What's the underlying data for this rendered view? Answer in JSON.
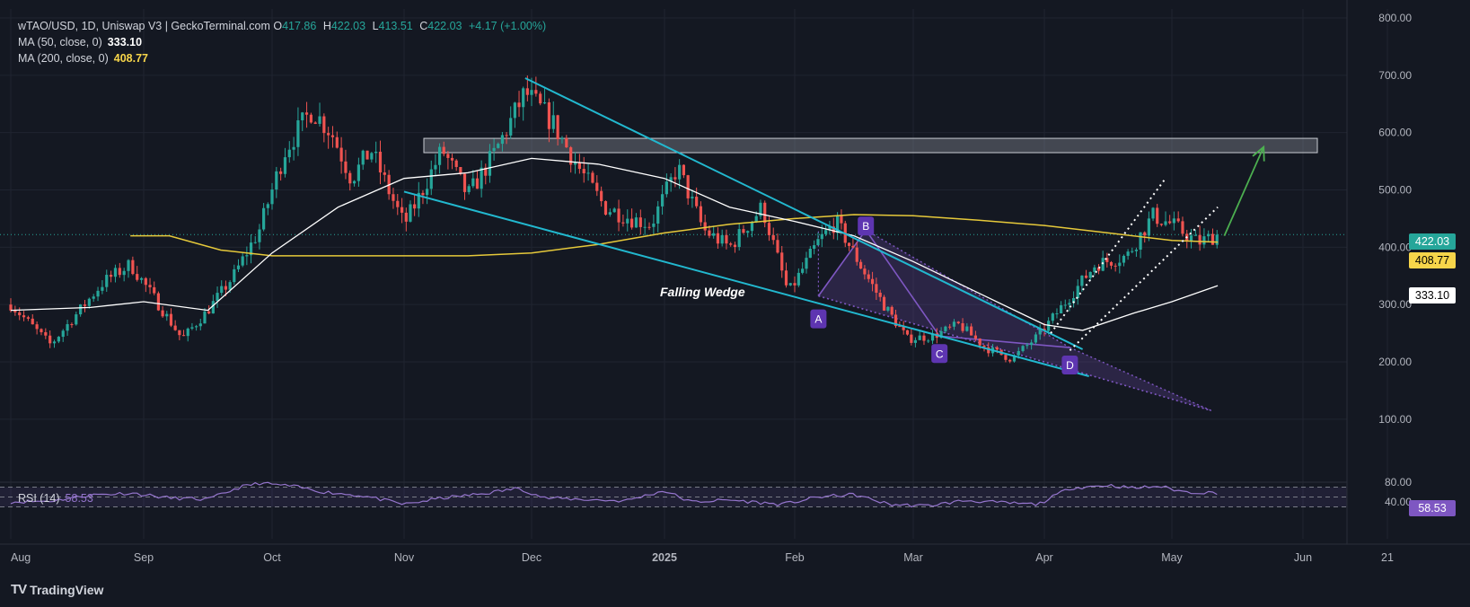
{
  "legend": {
    "symbol": "wTAO/USD, 1D, Uniswap V3 | GeckoTerminal.com",
    "open_label": "O",
    "open": "417.86",
    "high_label": "H",
    "high": "422.03",
    "low_label": "L",
    "low": "413.51",
    "close_label": "C",
    "close": "422.03",
    "change": "+4.17 (+1.00%)",
    "ma50_label": "MA (50, close, 0)",
    "ma50_value": "333.10",
    "ma200_label": "MA (200, close, 0)",
    "ma200_value": "408.77"
  },
  "rsi": {
    "label": "RSI (14)",
    "value": "58.53"
  },
  "brand": {
    "name": "TradingView",
    "logo": "TV"
  },
  "price_tags": {
    "last": "422.03",
    "ma200": "408.77",
    "ma50": "333.10"
  },
  "annotations": {
    "wedge_label": "Falling Wedge",
    "points": [
      "A",
      "B",
      "C",
      "D"
    ]
  },
  "colors": {
    "background": "#141822",
    "up": "#26a69a",
    "down": "#ef5350",
    "ma50": "#ffffff",
    "ma200": "#e6c93a",
    "wedge": "#22b8cf",
    "pattern": "#7e57c2",
    "arrow": "#4caf50",
    "rsi": "#7e57c2"
  },
  "chart_data": {
    "type": "candlestick",
    "title": "wTAO/USD, 1D, Uniswap V3",
    "x_tick_labels": [
      "Aug",
      "Sep",
      "Oct",
      "Nov",
      "Dec",
      "2025",
      "Feb",
      "Mar",
      "Apr",
      "May",
      "Jun",
      "21"
    ],
    "y_tick_labels": [
      "800.00",
      "700.00",
      "600.00",
      "500.00",
      "400.00",
      "300.00",
      "200.00",
      "100.00"
    ],
    "y_range": [
      10,
      800
    ],
    "rsi_tick_labels": [
      "80.00",
      "40.00"
    ],
    "rsi_levels": [
      70,
      50,
      30
    ],
    "key_points_months_from_aug": [
      {
        "t": 0.0,
        "price": 300
      },
      {
        "t": 0.3,
        "price": 230
      },
      {
        "t": 0.7,
        "price": 340
      },
      {
        "t": 0.9,
        "price": 370
      },
      {
        "t": 1.1,
        "price": 305
      },
      {
        "t": 1.3,
        "price": 240
      },
      {
        "t": 1.5,
        "price": 290
      },
      {
        "t": 1.7,
        "price": 350
      },
      {
        "t": 1.9,
        "price": 430
      },
      {
        "t": 2.1,
        "price": 570
      },
      {
        "t": 2.3,
        "price": 640
      },
      {
        "t": 2.45,
        "price": 600
      },
      {
        "t": 2.6,
        "price": 520
      },
      {
        "t": 2.75,
        "price": 570
      },
      {
        "t": 2.9,
        "price": 490
      },
      {
        "t": 3.0,
        "price": 440
      },
      {
        "t": 3.1,
        "price": 480
      },
      {
        "t": 3.3,
        "price": 570
      },
      {
        "t": 3.5,
        "price": 490
      },
      {
        "t": 3.7,
        "price": 560
      },
      {
        "t": 3.95,
        "price": 670
      },
      {
        "t": 4.15,
        "price": 620
      },
      {
        "t": 4.35,
        "price": 540
      },
      {
        "t": 4.55,
        "price": 470
      },
      {
        "t": 4.75,
        "price": 450
      },
      {
        "t": 4.9,
        "price": 440
      },
      {
        "t": 5.1,
        "price": 540
      },
      {
        "t": 5.3,
        "price": 430
      },
      {
        "t": 5.5,
        "price": 400
      },
      {
        "t": 5.75,
        "price": 470
      },
      {
        "t": 5.95,
        "price": 320
      },
      {
        "t": 6.2,
        "price": 410
      },
      {
        "t": 6.35,
        "price": 445
      },
      {
        "t": 6.55,
        "price": 370
      },
      {
        "t": 6.75,
        "price": 300
      },
      {
        "t": 6.95,
        "price": 240
      },
      {
        "t": 7.15,
        "price": 245
      },
      {
        "t": 7.35,
        "price": 265
      },
      {
        "t": 7.55,
        "price": 225
      },
      {
        "t": 7.75,
        "price": 205
      },
      {
        "t": 7.95,
        "price": 245
      },
      {
        "t": 8.15,
        "price": 300
      },
      {
        "t": 8.4,
        "price": 370
      },
      {
        "t": 8.65,
        "price": 385
      },
      {
        "t": 8.85,
        "price": 455
      },
      {
        "t": 9.0,
        "price": 440
      },
      {
        "t": 9.2,
        "price": 408
      },
      {
        "t": 9.35,
        "price": 422
      }
    ],
    "ma50_points": [
      {
        "t": 0.0,
        "price": 290
      },
      {
        "t": 0.6,
        "price": 295
      },
      {
        "t": 1.0,
        "price": 305
      },
      {
        "t": 1.5,
        "price": 290
      },
      {
        "t": 2.0,
        "price": 390
      },
      {
        "t": 2.5,
        "price": 470
      },
      {
        "t": 3.0,
        "price": 520
      },
      {
        "t": 3.5,
        "price": 530
      },
      {
        "t": 4.0,
        "price": 555
      },
      {
        "t": 4.5,
        "price": 545
      },
      {
        "t": 5.0,
        "price": 520
      },
      {
        "t": 5.5,
        "price": 470
      },
      {
        "t": 6.0,
        "price": 445
      },
      {
        "t": 6.5,
        "price": 420
      },
      {
        "t": 7.0,
        "price": 375
      },
      {
        "t": 7.5,
        "price": 320
      },
      {
        "t": 8.0,
        "price": 265
      },
      {
        "t": 8.3,
        "price": 255
      },
      {
        "t": 8.7,
        "price": 285
      },
      {
        "t": 9.0,
        "price": 305
      },
      {
        "t": 9.35,
        "price": 333
      }
    ],
    "ma200_points": [
      {
        "t": 0.9,
        "price": 420
      },
      {
        "t": 1.2,
        "price": 420
      },
      {
        "t": 1.6,
        "price": 395
      },
      {
        "t": 2.0,
        "price": 385
      },
      {
        "t": 2.5,
        "price": 385
      },
      {
        "t": 3.0,
        "price": 385
      },
      {
        "t": 3.5,
        "price": 385
      },
      {
        "t": 4.0,
        "price": 390
      },
      {
        "t": 4.5,
        "price": 405
      },
      {
        "t": 5.0,
        "price": 425
      },
      {
        "t": 5.5,
        "price": 440
      },
      {
        "t": 6.0,
        "price": 450
      },
      {
        "t": 6.5,
        "price": 457
      },
      {
        "t": 7.0,
        "price": 455
      },
      {
        "t": 7.5,
        "price": 447
      },
      {
        "t": 8.0,
        "price": 438
      },
      {
        "t": 8.5,
        "price": 425
      },
      {
        "t": 9.0,
        "price": 412
      },
      {
        "t": 9.35,
        "price": 409
      }
    ],
    "resistance_zone": [
      565,
      590
    ],
    "wedge_upper": [
      {
        "t": 3.95,
        "price": 695
      },
      {
        "t": 8.3,
        "price": 222
      }
    ],
    "wedge_lower": [
      {
        "t": 3.0,
        "price": 497
      },
      {
        "t": 8.35,
        "price": 175
      }
    ],
    "pattern_points": {
      "A": {
        "t": 6.2,
        "price": 315
      },
      "B": {
        "t": 6.6,
        "price": 430
      },
      "C": {
        "t": 7.2,
        "price": 245
      },
      "D": {
        "t": 8.2,
        "price": 225
      }
    },
    "pattern_projection": {
      "t": 9.3,
      "price": 115
    },
    "channel_upper": [
      {
        "t": 8.05,
        "price": 250
      },
      {
        "t": 8.95,
        "price": 520
      }
    ],
    "channel_lower": [
      {
        "t": 8.2,
        "price": 220
      },
      {
        "t": 9.35,
        "price": 470
      }
    ],
    "arrow": {
      "from": {
        "t": 9.4,
        "price": 420
      },
      "to": {
        "t": 9.7,
        "price": 575
      }
    },
    "rsi_points": [
      {
        "t": 0.0,
        "price": 40
      },
      {
        "t": 0.3,
        "price": 42
      },
      {
        "t": 0.6,
        "price": 54
      },
      {
        "t": 0.9,
        "price": 58
      },
      {
        "t": 1.2,
        "price": 48
      },
      {
        "t": 1.5,
        "price": 45
      },
      {
        "t": 1.75,
        "price": 70
      },
      {
        "t": 1.9,
        "price": 78
      },
      {
        "t": 2.15,
        "price": 72
      },
      {
        "t": 2.4,
        "price": 60
      },
      {
        "t": 2.7,
        "price": 52
      },
      {
        "t": 3.0,
        "price": 35
      },
      {
        "t": 3.3,
        "price": 48
      },
      {
        "t": 3.6,
        "price": 56
      },
      {
        "t": 3.9,
        "price": 68
      },
      {
        "t": 4.1,
        "price": 48
      },
      {
        "t": 4.4,
        "price": 45
      },
      {
        "t": 4.7,
        "price": 42
      },
      {
        "t": 5.0,
        "price": 63
      },
      {
        "t": 5.2,
        "price": 40
      },
      {
        "t": 5.5,
        "price": 44
      },
      {
        "t": 5.9,
        "price": 35
      },
      {
        "t": 6.2,
        "price": 50
      },
      {
        "t": 6.5,
        "price": 55
      },
      {
        "t": 6.8,
        "price": 35
      },
      {
        "t": 7.1,
        "price": 32
      },
      {
        "t": 7.4,
        "price": 43
      },
      {
        "t": 7.7,
        "price": 38
      },
      {
        "t": 7.95,
        "price": 35
      },
      {
        "t": 8.2,
        "price": 68
      },
      {
        "t": 8.5,
        "price": 74
      },
      {
        "t": 8.7,
        "price": 68
      },
      {
        "t": 8.9,
        "price": 72
      },
      {
        "t": 9.1,
        "price": 60
      },
      {
        "t": 9.35,
        "price": 58.53
      }
    ]
  }
}
